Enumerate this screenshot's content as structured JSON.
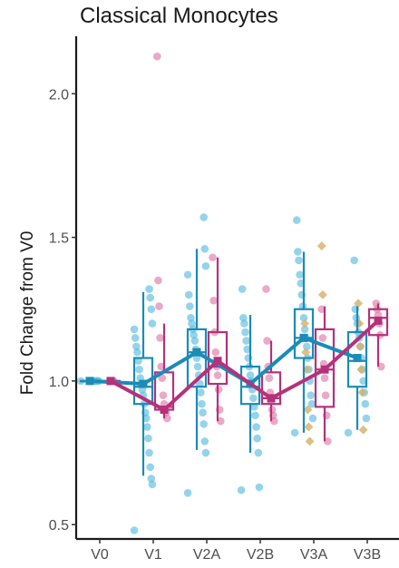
{
  "chart_data": {
    "type": "box",
    "title": "Classical Monocytes",
    "xlabel": "",
    "ylabel": "Fold Change from V0",
    "categories": [
      "V0",
      "V1",
      "V2A",
      "V2B",
      "V3A",
      "V3B"
    ],
    "y_ticks": [
      0.5,
      1.0,
      1.5,
      2.0
    ],
    "y_tick_labels": [
      "0.5",
      "1.0",
      "1.5",
      "2.0"
    ],
    "ylim": [
      0.45,
      2.2
    ],
    "grid": false,
    "legend": "none",
    "series": [
      {
        "color": "#1b8bb8",
        "point_color": "#5bbde0",
        "mean_line": [
          1.0,
          0.99,
          1.1,
          0.99,
          1.15,
          1.08
        ],
        "boxes": [
          {
            "category": "V0",
            "q1": 1.0,
            "median": 1.0,
            "q3": 1.0,
            "low": 1.0,
            "high": 1.0
          },
          {
            "category": "V1",
            "q1": 0.92,
            "median": 0.98,
            "q3": 1.08,
            "low": 0.67,
            "high": 1.31
          },
          {
            "category": "V2A",
            "q1": 0.98,
            "median": 1.1,
            "q3": 1.18,
            "low": 0.76,
            "high": 1.46
          },
          {
            "category": "V2B",
            "q1": 0.92,
            "median": 0.98,
            "q3": 1.05,
            "low": 0.75,
            "high": 1.23
          },
          {
            "category": "V3A",
            "q1": 1.08,
            "median": 1.15,
            "q3": 1.25,
            "low": 0.82,
            "high": 1.45
          },
          {
            "category": "V3B",
            "q1": 0.98,
            "median": 1.07,
            "q3": 1.17,
            "low": 0.83,
            "high": 1.26
          }
        ],
        "points": {
          "V0": [
            1.0,
            1.0,
            1.0,
            1.0,
            1.0,
            1.0
          ],
          "V1": [
            0.48,
            0.64,
            0.66,
            0.7,
            0.75,
            0.8,
            0.84,
            0.87,
            0.89,
            0.92,
            0.95,
            0.97,
            0.99,
            1.01,
            1.04,
            1.07,
            1.1,
            1.12,
            1.15,
            1.18,
            1.2,
            1.25,
            1.29,
            1.32
          ],
          "V2A": [
            0.61,
            0.75,
            0.79,
            0.85,
            0.89,
            0.92,
            0.96,
            0.99,
            1.02,
            1.05,
            1.08,
            1.11,
            1.14,
            1.16,
            1.18,
            1.2,
            1.22,
            1.26,
            1.3,
            1.37,
            1.4,
            1.46,
            1.57
          ],
          "V2B": [
            0.62,
            0.63,
            0.75,
            0.8,
            0.84,
            0.88,
            0.91,
            0.94,
            0.97,
            1.0,
            1.02,
            1.05,
            1.08,
            1.11,
            1.14,
            1.17,
            1.2,
            1.22,
            1.32
          ],
          "V3A": [
            0.82,
            0.87,
            0.92,
            0.95,
            1.0,
            1.04,
            1.08,
            1.12,
            1.15,
            1.18,
            1.22,
            1.26,
            1.3,
            1.34,
            1.37,
            1.42,
            1.45,
            1.56
          ],
          "V3B": [
            0.82,
            0.87,
            0.92,
            0.96,
            1.0,
            1.04,
            1.08,
            1.12,
            1.15,
            1.17,
            1.2,
            1.22,
            1.25,
            1.42
          ]
        }
      },
      {
        "color": "#b5317a",
        "point_color": "#e07aaa",
        "mean_line": [
          1.0,
          0.9,
          1.07,
          0.94,
          1.04,
          1.21
        ],
        "boxes": [
          {
            "category": "V0",
            "q1": 1.0,
            "median": 1.0,
            "q3": 1.0,
            "low": 1.0,
            "high": 1.0
          },
          {
            "category": "V1",
            "q1": 0.9,
            "median": 0.91,
            "q3": 1.03,
            "low": 0.87,
            "high": 1.2
          },
          {
            "category": "V2A",
            "q1": 0.99,
            "median": 1.05,
            "q3": 1.17,
            "low": 0.86,
            "high": 1.43
          },
          {
            "category": "V2B",
            "q1": 0.92,
            "median": 0.94,
            "q3": 1.03,
            "low": 0.86,
            "high": 1.14
          },
          {
            "category": "V3A",
            "q1": 0.91,
            "median": 1.04,
            "q3": 1.18,
            "low": 0.79,
            "high": 1.26
          },
          {
            "category": "V3B",
            "q1": 1.16,
            "median": 1.22,
            "q3": 1.25,
            "low": 1.05,
            "high": 1.27
          }
        ],
        "points": {
          "V0": [
            1.0,
            1.0,
            1.0,
            1.0
          ],
          "V1": [
            0.87,
            0.89,
            0.9,
            0.92,
            0.95,
            1.01,
            1.05,
            1.15,
            1.26,
            1.35,
            2.13
          ],
          "V2A": [
            0.86,
            0.9,
            0.97,
            1.02,
            1.05,
            1.1,
            1.17,
            1.28,
            1.43
          ],
          "V2B": [
            0.86,
            0.88,
            0.9,
            0.93,
            0.96,
            1.01,
            1.05,
            1.14,
            1.32
          ],
          "V3A": [
            0.79,
            0.88,
            0.95,
            1.01,
            1.06,
            1.15,
            1.25
          ],
          "V3B": [
            1.05,
            1.16,
            1.2,
            1.23,
            1.25,
            1.27
          ]
        }
      },
      {
        "color": "#c9a45a",
        "point_color": "#d4b06a",
        "marker": "diamond",
        "points": {
          "V3A": [
            0.79,
            0.84,
            0.9,
            1.04,
            1.1,
            1.2,
            1.3,
            1.47
          ],
          "V3B": [
            0.83,
            0.96,
            1.04,
            1.12,
            1.2,
            1.27
          ]
        }
      }
    ]
  }
}
